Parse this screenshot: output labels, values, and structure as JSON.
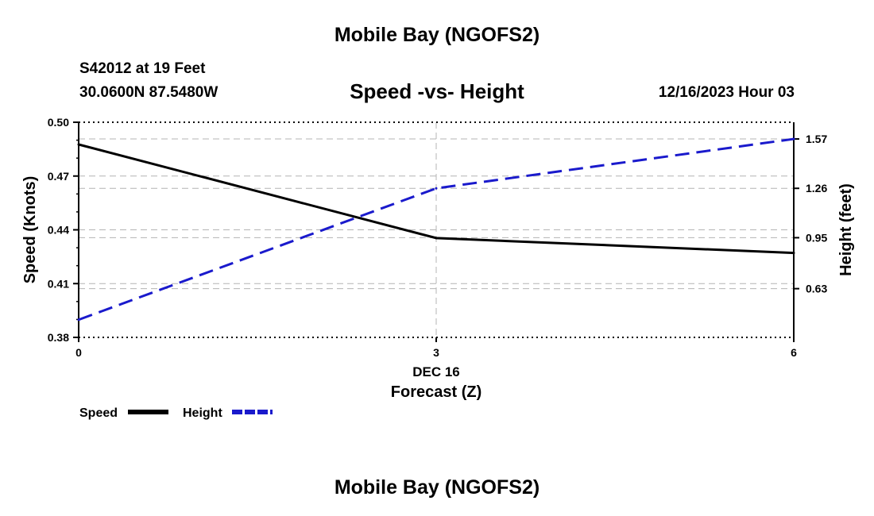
{
  "header": {
    "title": "Mobile Bay (NGOFS2)",
    "station": "S42012 at 19 Feet",
    "coords": "30.0600N  87.5480W",
    "subtitle": "Speed -vs- Height",
    "datetime": "12/16/2023 Hour 03"
  },
  "footer": {
    "title": "Mobile Bay (NGOFS2)"
  },
  "chart_data": {
    "type": "line",
    "title": "Speed -vs- Height",
    "xlabel": "Forecast (Z)",
    "x_date_label": "DEC 16",
    "x": [
      0,
      3,
      6
    ],
    "xlim": [
      0,
      6
    ],
    "x_ticks": [
      "0",
      "3",
      "6"
    ],
    "y_left": {
      "label": "Speed (Knots)",
      "lim": [
        0.38,
        0.5
      ],
      "ticks": [
        "0.38",
        "0.41",
        "0.44",
        "0.47",
        "0.50"
      ]
    },
    "y_right": {
      "label": "Height (feet)",
      "lim": [
        0.324,
        1.675
      ],
      "ticks": [
        "0.63",
        "0.95",
        "1.26",
        "1.57"
      ]
    },
    "grid": true,
    "legend_position": "bottom-left",
    "series": [
      {
        "name": "Speed",
        "axis": "left",
        "color": "#000000",
        "dash": "solid",
        "values": [
          0.4876,
          0.4354,
          0.4271
        ]
      },
      {
        "name": "Height",
        "axis": "right",
        "color": "#1a1acc",
        "dash": "dashed",
        "values": [
          0.435,
          1.26,
          1.57
        ]
      }
    ]
  }
}
